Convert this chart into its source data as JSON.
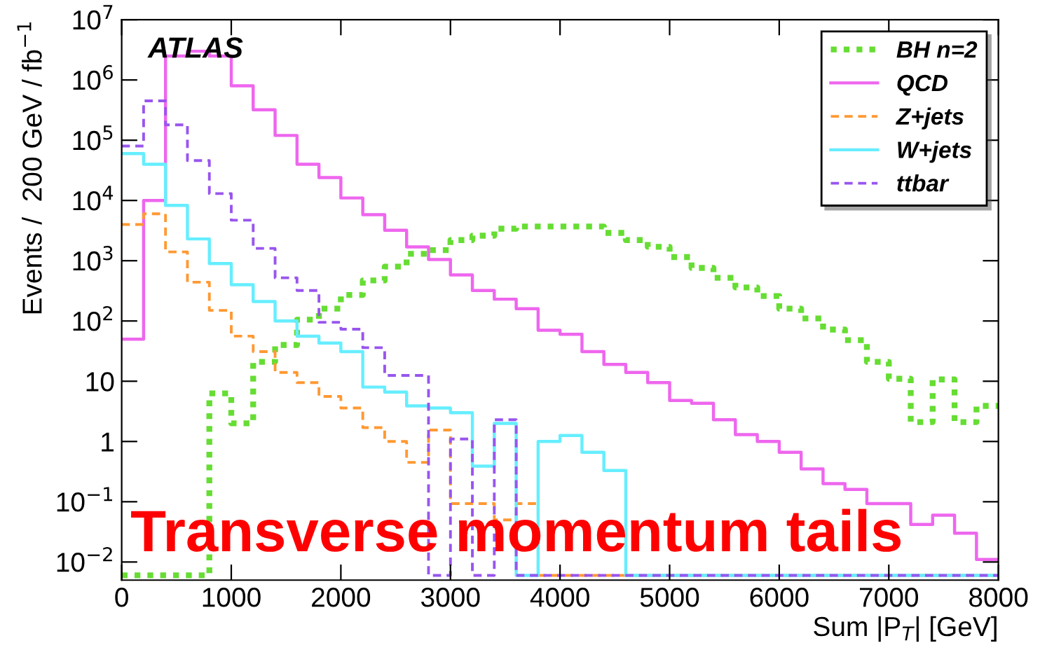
{
  "chart_data": {
    "type": "histogram",
    "xlabel": "Sum |P$_{T}$| [GeV]",
    "ylabel": "Events /  200 GeV / fb$^{−1}$",
    "annotations": [
      "ATLAS",
      "Transverse momentum tails"
    ],
    "bins": [
      0,
      200,
      400,
      600,
      800,
      1000,
      1200,
      1400,
      1600,
      1800,
      2000,
      2200,
      2400,
      2600,
      2800,
      3000,
      3200,
      3400,
      3600,
      3800,
      4000,
      4200,
      4400,
      4600,
      4800,
      5000,
      5200,
      5400,
      5600,
      5800,
      6000,
      6200,
      6400,
      6600,
      6800,
      7000,
      7200,
      7400,
      7600,
      7800,
      8000
    ],
    "series": [
      {
        "name": "BH n=2",
        "color": "#66dd33",
        "line_style": "dotted",
        "values": [
          0.006,
          0.006,
          0.006,
          0.006,
          6.3,
          2,
          21,
          40,
          105,
          160,
          270,
          470,
          800,
          1300,
          1500,
          2200,
          2600,
          3400,
          3700,
          3700,
          3700,
          3700,
          2900,
          2200,
          1700,
          1150,
          760,
          520,
          360,
          260,
          160,
          110,
          72,
          48,
          21,
          11,
          2.1,
          10.7,
          2.1,
          3.9
        ]
      },
      {
        "name": "QCD",
        "color": "#ee66ee",
        "line_style": "solid",
        "values": [
          50,
          10000,
          2500000,
          3000000,
          2500000,
          800000,
          320000,
          120000,
          40000,
          24000,
          11000,
          5800,
          3200,
          1700,
          1050,
          580,
          320,
          230,
          160,
          70,
          60,
          31,
          19,
          14,
          9.5,
          4.8,
          4.3,
          2.3,
          1.3,
          1.0,
          0.66,
          0.35,
          0.2,
          0.16,
          0.093,
          0.093,
          0.042,
          0.06,
          0.03,
          0.011
        ]
      },
      {
        "name": "Z+jets",
        "color": "#ff9933",
        "line_style": "dashed",
        "values": [
          4000,
          6000,
          1400,
          440,
          150,
          56,
          31,
          14,
          9.5,
          5.6,
          3.6,
          1.7,
          1.0,
          0.45,
          1.55,
          0.093,
          0.093,
          0.05,
          0.093,
          0.006,
          0.006,
          0.006,
          0.006,
          0.006,
          0.006,
          0.006,
          0.006,
          0.006,
          0.006,
          0.006,
          0.006,
          0.006,
          0.006,
          0.006,
          0.006,
          0.006,
          0.006,
          0.006,
          0.006,
          0.006
        ]
      },
      {
        "name": "W+jets",
        "color": "#66eeff",
        "line_style": "solid",
        "values": [
          60000,
          40000,
          8300,
          2300,
          900,
          400,
          210,
          100,
          56,
          43,
          31,
          8,
          6.6,
          3.9,
          3.6,
          3,
          0.39,
          2,
          0.006,
          1.0,
          1.26,
          0.66,
          0.33,
          0.006,
          0.006,
          0.006,
          0.006,
          0.006,
          0.006,
          0.006,
          0.006,
          0.006,
          0.006,
          0.006,
          0.006,
          0.006,
          0.006,
          0.006,
          0.006,
          0.006
        ]
      },
      {
        "name": "ttbar",
        "color": "#9955ee",
        "line_style": "dashed",
        "values": [
          80000,
          450000,
          180000,
          46000,
          13000,
          4700,
          1600,
          520,
          320,
          95,
          73,
          36,
          12.5,
          12.5,
          0.006,
          1.1,
          0.006,
          2.3,
          0.006,
          0.006,
          0.006,
          0.006,
          0.006,
          0.006,
          0.006,
          0.006,
          0.006,
          0.006,
          0.006,
          0.006,
          0.006,
          0.006,
          0.006,
          0.006,
          0.006,
          0.006,
          0.006,
          0.006,
          0.006,
          0.006
        ]
      }
    ],
    "xlim": [
      0,
      8000
    ],
    "xticks": [
      0,
      1000,
      2000,
      3000,
      4000,
      5000,
      6000,
      7000,
      8000
    ],
    "log": "y",
    "ylim": [
      0.005,
      10000000
    ],
    "yticks": [
      {
        "value": 0.01,
        "label": "10$^{−2}$"
      },
      {
        "value": 0.1,
        "label": "10$^{−1}$"
      },
      1,
      10,
      {
        "value": 100,
        "label": "10$^{2}$"
      },
      {
        "value": 1000,
        "label": "10$^{3}$"
      },
      {
        "value": 10000,
        "label": "10$^{4}$"
      },
      {
        "value": 100000,
        "label": "10$^{5}$"
      },
      {
        "value": 1000000,
        "label": "10$^{6}$"
      },
      {
        "value": 10000000,
        "label": "10$^{7}$"
      }
    ],
    "grid": false,
    "legend": "top right"
  }
}
